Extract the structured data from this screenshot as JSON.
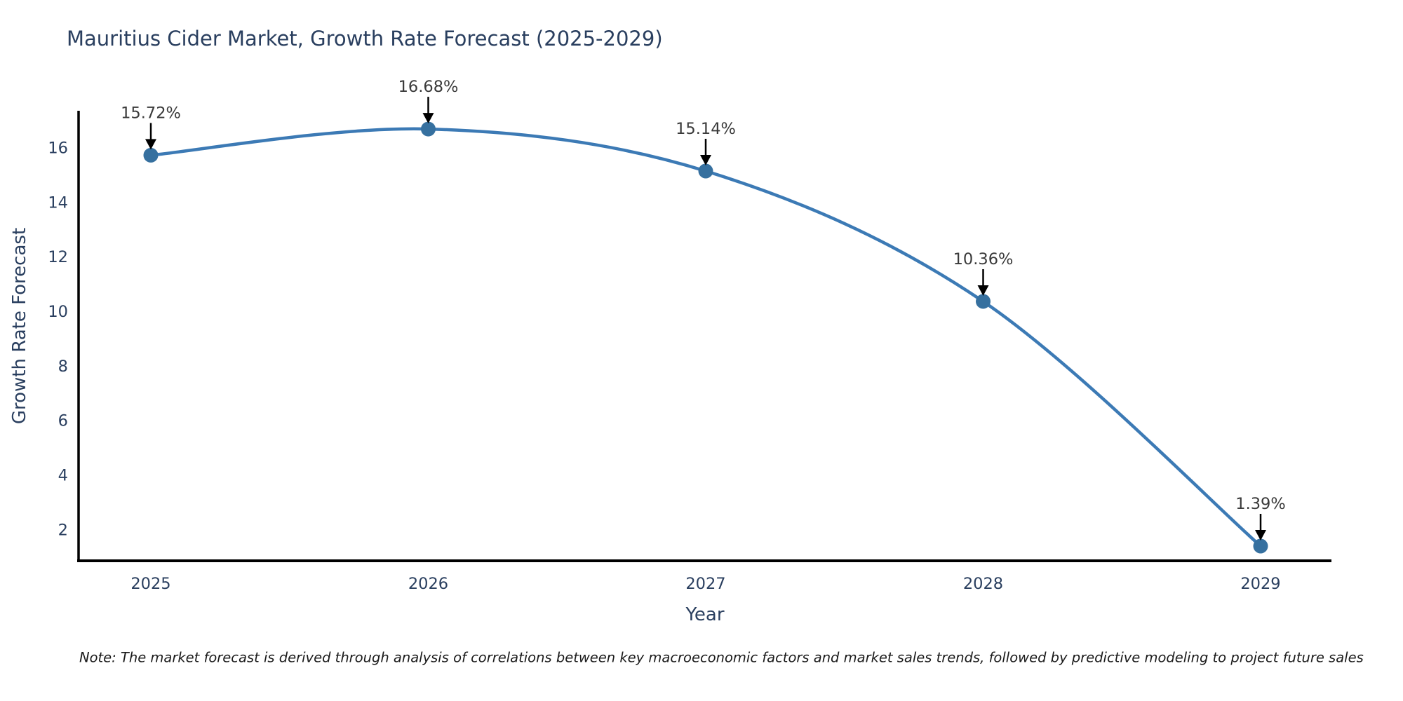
{
  "note": "Note: The market forecast is derived through analysis of correlations between key macroeconomic factors and market sales trends, followed by predictive modeling to project future sales",
  "chart_data": {
    "type": "line",
    "title": "Mauritius Cider Market, Growth Rate Forecast (2025-2029)",
    "xlabel": "Year",
    "ylabel": "Growth Rate Forecast",
    "categories": [
      "2025",
      "2026",
      "2027",
      "2028",
      "2029"
    ],
    "values": [
      15.72,
      16.68,
      15.14,
      10.36,
      1.39
    ],
    "point_labels": [
      "15.72%",
      "16.68%",
      "15.14%",
      "10.36%",
      "1.39%"
    ],
    "series": [
      {
        "name": "Growth Rate Forecast",
        "values": [
          15.72,
          16.68,
          15.14,
          10.36,
          1.39
        ]
      }
    ],
    "yticks": [
      2,
      4,
      6,
      8,
      10,
      12,
      14,
      16
    ],
    "ylim": [
      0.85,
      17.35
    ],
    "line_shape": "spline",
    "grid": "off",
    "legend": "none",
    "colors": {
      "line": "#3c7ab5",
      "marker": "#36709f",
      "axis": "#000000",
      "text": "#2a3f5f",
      "annotation_text": "#3a3a3a",
      "arrow": "#000000",
      "background": "#ffffff"
    }
  }
}
